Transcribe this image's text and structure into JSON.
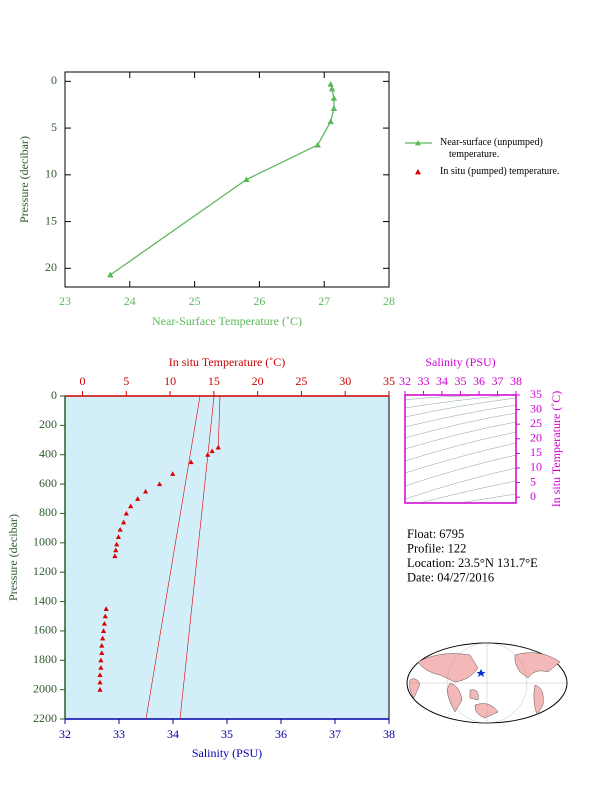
{
  "chart_data": [
    {
      "type": "line",
      "xlabel": "Near-Surface Temperature (˚C)",
      "ylabel": "Pressure (decibar)",
      "xlim": [
        23,
        28
      ],
      "xticks": [
        23,
        24,
        25,
        26,
        27,
        28
      ],
      "ylim": [
        22,
        -1
      ],
      "yticks": [
        0,
        5,
        10,
        15,
        20
      ],
      "axis_color": "#5cb85c",
      "legend": "right",
      "series": [
        {
          "name": "Near-surface (unpumped) temperature.",
          "color": "#5cb85c",
          "line": true,
          "x": [
            23.7,
            25.8,
            26.9,
            27.1,
            27.15,
            27.15,
            27.12,
            27.1
          ],
          "values": [
            20.7,
            10.5,
            6.8,
            4.3,
            2.9,
            1.8,
            0.8,
            0.3
          ]
        },
        {
          "name": "In situ (pumped) temperature.",
          "color": "#dd0000",
          "line": false,
          "x": [],
          "values": []
        }
      ]
    },
    {
      "type": "profile",
      "xlabel": "In situ Temperature (˚C)",
      "x2label": "Salinity (PSU)",
      "ylabel": "Pressure (decibar)",
      "xlim": [
        -2,
        35
      ],
      "xticks": [
        0,
        5,
        10,
        15,
        20,
        25,
        30,
        35
      ],
      "x2lim": [
        32,
        38
      ],
      "x2ticks": [
        32,
        33,
        34,
        35,
        36,
        37,
        38
      ],
      "ylim": [
        2200,
        0
      ],
      "yticks": [
        0,
        200,
        400,
        600,
        800,
        1000,
        1200,
        1400,
        1600,
        1800,
        2000,
        2200
      ],
      "background": "#d2eff9",
      "x_color": "#cc0000",
      "x2_color": "#0000aa",
      "y_color": "#2f5a2f",
      "series": [
        {
          "color": "#dd0000",
          "line": false,
          "x": [
            15.5,
            14.8,
            14.3,
            12.4,
            10.3,
            8.8,
            7.2,
            6.3,
            5.5,
            5.0,
            4.7,
            4.3,
            4.1,
            3.9,
            3.8,
            3.7,
            2.7,
            2.6,
            2.5,
            2.4,
            2.3,
            2.2,
            2.2,
            2.1,
            2.1,
            2.0,
            2.0,
            2.0
          ],
          "values": [
            350,
            375,
            400,
            450,
            530,
            600,
            650,
            700,
            750,
            800,
            860,
            910,
            960,
            1010,
            1050,
            1090,
            1450,
            1500,
            1550,
            1600,
            1650,
            1700,
            1750,
            1800,
            1850,
            1900,
            1950,
            2000
          ]
        },
        {
          "color": "#dd0000",
          "line": true,
          "x": [
            15.7,
            15.5
          ],
          "values": [
            0,
            350
          ]
        },
        {
          "color": "#dd0000",
          "line": true,
          "axis": "x2",
          "x": [
            34.5,
            33.5
          ],
          "values": [
            0,
            2200
          ]
        },
        {
          "color": "#dd0000",
          "line": true,
          "axis": "x2",
          "x": [
            34.76,
            34.13
          ],
          "values": [
            0,
            2200
          ]
        }
      ]
    },
    {
      "type": "ts",
      "xlabel": "Salinity (PSU)",
      "ylabel": "In situ Temperature (˚C)",
      "xlim": [
        32,
        38
      ],
      "xticks": [
        32,
        33,
        34,
        35,
        36,
        37,
        38
      ],
      "ylim": [
        -2,
        35
      ],
      "yticks": [
        0,
        5,
        10,
        15,
        20,
        25,
        30,
        35
      ],
      "color": "#d000d0"
    }
  ],
  "info": {
    "float": "Float:  6795",
    "profile": "Profile:  122",
    "location": "Location:  23.5°N  131.7°E",
    "date": "Date:  04/27/2016"
  }
}
